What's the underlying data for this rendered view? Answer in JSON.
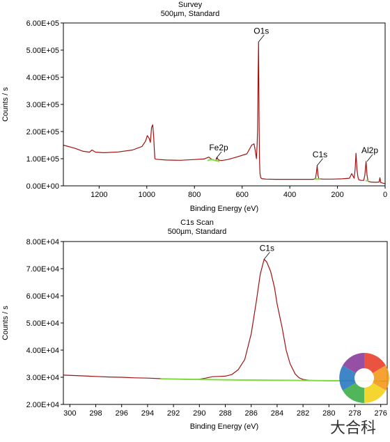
{
  "chart_data": [
    {
      "type": "line",
      "title": "Survey",
      "subtitle": "500µm,  Standard",
      "xlabel": "Binding Energy (eV)",
      "ylabel": "Counts / s",
      "xlim": [
        1350,
        0
      ],
      "ylim": [
        0,
        600000
      ],
      "x_ticks": [
        1200,
        1000,
        800,
        600,
        400,
        200,
        0
      ],
      "x_tick_labels": [
        "1200",
        "1000",
        "800",
        "600",
        "400",
        "200",
        "0"
      ],
      "y_ticks": [
        0,
        100000,
        200000,
        300000,
        400000,
        500000,
        600000
      ],
      "y_tick_labels": [
        "0.00E+00",
        "1.00E+05",
        "2.00E+05",
        "3.00E+05",
        "4.00E+05",
        "5.00E+05",
        "6.00E+05"
      ],
      "series": [
        {
          "color": "#a01010",
          "x": [
            1350,
            1300,
            1270,
            1240,
            1230,
            1215,
            1180,
            1120,
            1060,
            1020,
            1005,
            998,
            990,
            985,
            980,
            975,
            971,
            968,
            966,
            960,
            920,
            860,
            800,
            760,
            740,
            725,
            715,
            710,
            705,
            700,
            690,
            680,
            660,
            620,
            580,
            560,
            550,
            545,
            540,
            537,
            535,
            533,
            531,
            529,
            527,
            525,
            522,
            518,
            515,
            510,
            500,
            460,
            400,
            340,
            300,
            292,
            288,
            285,
            282,
            278,
            260,
            220,
            180,
            150,
            140,
            130,
            126,
            122,
            118,
            114,
            110,
            100,
            90,
            85,
            80,
            76,
            72,
            68,
            60,
            40,
            25,
            22,
            18,
            10,
            0
          ],
          "y": [
            150000,
            138000,
            128000,
            124000,
            132000,
            124000,
            122000,
            125000,
            132000,
            145000,
            165000,
            185000,
            175000,
            160000,
            215000,
            225000,
            180000,
            130000,
            100000,
            98000,
            95000,
            94000,
            97000,
            99000,
            106000,
            96000,
            94000,
            92000,
            105000,
            96000,
            93000,
            94000,
            97000,
            107000,
            118000,
            150000,
            155000,
            130000,
            100000,
            150000,
            210000,
            400000,
            530000,
            250000,
            100000,
            45000,
            30000,
            27000,
            26000,
            26000,
            25000,
            24000,
            24000,
            24000,
            24000,
            28000,
            50000,
            75000,
            40000,
            26000,
            25000,
            25000,
            26000,
            28000,
            45000,
            28000,
            60000,
            120000,
            60000,
            32000,
            22000,
            20000,
            20000,
            40000,
            90000,
            40000,
            18000,
            16000,
            14000,
            13000,
            14000,
            30000,
            12000,
            10000,
            8000
          ]
        },
        {
          "color": "#7fdc3c",
          "x": [
            745,
            735,
            725,
            715,
            705,
            695
          ],
          "y": [
            93000,
            96000,
            97000,
            94000,
            92000,
            90000
          ]
        },
        {
          "color": "#7fdc3c",
          "x": [
            296,
            290,
            284,
            278,
            272
          ],
          "y": [
            25000,
            25000,
            25000,
            25000,
            25000
          ]
        },
        {
          "color": "#7fdc3c",
          "x": [
            82,
            76,
            70
          ],
          "y": [
            19000,
            19000,
            18000
          ]
        }
      ],
      "annotations": [
        {
          "label": "O1s",
          "x": 531,
          "y": 530000
        },
        {
          "label": "Fe2p",
          "x": 710,
          "y": 100000
        },
        {
          "label": "C1s",
          "x": 285,
          "y": 75000
        },
        {
          "label": "Al2p",
          "x": 76,
          "y": 90000
        }
      ]
    },
    {
      "type": "line",
      "title": "C1s Scan",
      "subtitle": "500µm,  Standard",
      "xlabel": "Binding Energy (eV)",
      "ylabel": "Counts / s",
      "xlim": [
        300.5,
        275.5
      ],
      "ylim": [
        20000,
        80000
      ],
      "x_ticks": [
        300,
        298,
        296,
        294,
        292,
        290,
        288,
        286,
        284,
        282,
        280,
        278,
        276
      ],
      "x_tick_labels": [
        "300",
        "298",
        "296",
        "294",
        "292",
        "290",
        "288",
        "286",
        "284",
        "282",
        "280",
        "278",
        "276"
      ],
      "y_ticks": [
        20000,
        30000,
        40000,
        50000,
        60000,
        70000,
        80000
      ],
      "y_tick_labels": [
        "2.00E+04",
        "3.00E+04",
        "4.00E+04",
        "5.00E+04",
        "6.00E+04",
        "7.00E+04",
        "8.00E+04"
      ],
      "series": [
        {
          "color": "#a01010",
          "x": [
            300.5,
            299,
            298,
            297,
            296,
            295,
            294,
            293,
            292,
            291,
            290,
            289.5,
            289,
            288.5,
            288,
            287.5,
            287,
            286.5,
            286,
            285.6,
            285.3,
            285,
            284.8,
            284.5,
            284.2,
            284,
            283.6,
            283.3,
            283,
            282.6,
            282.3,
            282,
            281.5,
            281,
            280,
            279,
            278,
            277,
            276,
            275.5
          ],
          "y": [
            30800,
            30500,
            30300,
            30100,
            30000,
            29800,
            29700,
            29500,
            29300,
            29200,
            29300,
            29700,
            30200,
            30300,
            30400,
            31000,
            32800,
            36500,
            46000,
            58000,
            68000,
            73500,
            72500,
            69000,
            63000,
            57000,
            48000,
            40000,
            35000,
            31200,
            29800,
            29200,
            28900,
            28800,
            28700,
            28700,
            28600,
            28600,
            28600,
            28600
          ]
        },
        {
          "color": "#7fdc3c",
          "x": [
            293,
            290,
            287,
            284,
            281,
            278,
            276
          ],
          "y": [
            29400,
            29200,
            29000,
            28900,
            28800,
            28700,
            28600
          ]
        }
      ],
      "annotations": [
        {
          "label": "C1s",
          "x": 285,
          "y": 73500
        }
      ]
    }
  ]
}
